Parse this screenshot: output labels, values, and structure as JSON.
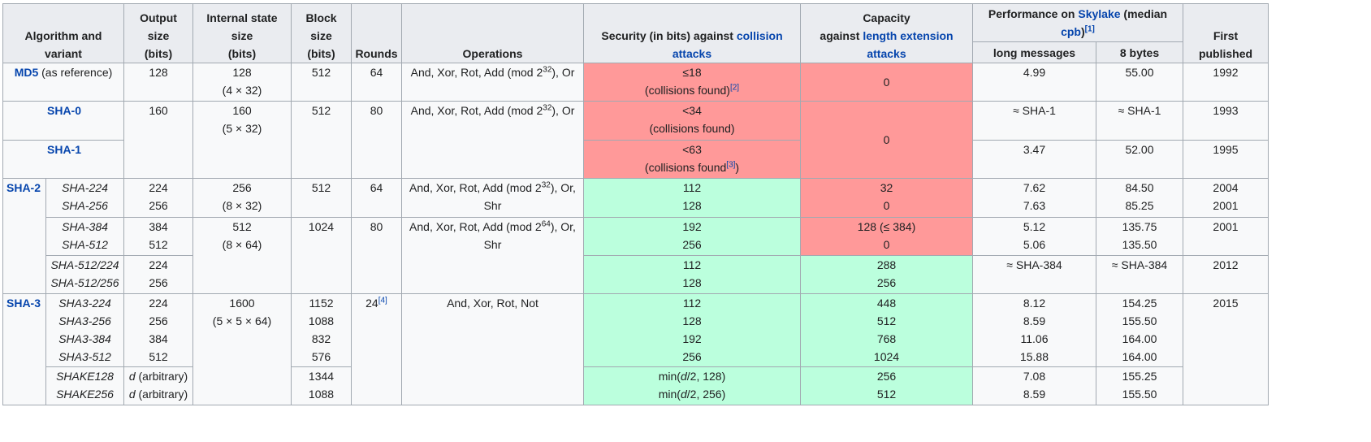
{
  "headers": {
    "algorithm": [
      "Algorithm and",
      "variant"
    ],
    "output_size": [
      "Output",
      "size",
      "(bits)"
    ],
    "internal_state": [
      "Internal state",
      "size",
      "(bits)"
    ],
    "block_size": [
      "Block",
      "size",
      "(bits)"
    ],
    "rounds": "Rounds",
    "operations": "Operations",
    "security_prefix": "Security (in bits) against ",
    "security_link": "collision attacks",
    "capacity_line1": "Capacity",
    "capacity_prefix": "against ",
    "capacity_link": "length extension attacks",
    "perf_prefix": "Performance on ",
    "perf_link": "Skylake",
    "perf_mid": " (median ",
    "perf_link2": "cpb",
    "perf_suffix": ")",
    "perf_ref": "[1]",
    "long_messages": "long messages",
    "eight_bytes": "8 bytes",
    "first_published": [
      "First",
      "published"
    ]
  },
  "rows": {
    "md5": {
      "name": "MD5",
      "name_suffix": " (as reference)",
      "output": "128",
      "state_a": "128",
      "state_b": "(4 × 32)",
      "block": "512",
      "rounds": "64",
      "ops_a": "And, Xor, Rot, Add (mod 2",
      "ops_exp": "32",
      "ops_b": "), Or",
      "security_a": "≤18",
      "security_b": "(collisions found)",
      "security_ref": "[2]",
      "capacity": "0",
      "perf_long": "4.99",
      "perf_8": "55.00",
      "year": "1992"
    },
    "sha0": {
      "name": "SHA-0",
      "output": "160",
      "state_a": "160",
      "state_b": "(5 × 32)",
      "block": "512",
      "rounds": "80",
      "ops_a": "And, Xor, Rot, Add (mod 2",
      "ops_exp": "32",
      "ops_b": "), Or",
      "security_a": "<34",
      "security_b": "(collisions found)",
      "capacity": "0",
      "perf_long": "≈ SHA-1",
      "perf_8": "≈ SHA-1",
      "year": "1993"
    },
    "sha1": {
      "name": "SHA-1",
      "security_a": "<63",
      "security_b": "(collisions found",
      "security_ref": "[3]",
      "security_close": ")",
      "perf_long": "3.47",
      "perf_8": "52.00",
      "year": "1995"
    },
    "sha2": {
      "group": "SHA-2",
      "g1": {
        "variants": [
          "SHA-224",
          "SHA-256"
        ],
        "outputs": [
          "224",
          "256"
        ],
        "state_a": "256",
        "state_b": "(8 × 32)",
        "block": "512",
        "rounds": "64",
        "ops_a": "And, Xor, Rot, Add (mod 2",
        "ops_exp": "32",
        "ops_b": "), Or,",
        "ops_c": "Shr",
        "security": [
          "112",
          "128"
        ],
        "capacity": [
          "32",
          "0"
        ],
        "perf_long": [
          "7.62",
          "7.63"
        ],
        "perf_8": [
          "84.50",
          "85.25"
        ],
        "years": [
          "2004",
          "2001"
        ]
      },
      "g2": {
        "variants": [
          "SHA-384",
          "SHA-512"
        ],
        "outputs": [
          "384",
          "512"
        ],
        "state_a": "512",
        "state_b": "(8 × 64)",
        "block": "1024",
        "rounds": "80",
        "ops_a": "And, Xor, Rot, Add (mod 2",
        "ops_exp": "64",
        "ops_b": "), Or,",
        "ops_c": "Shr",
        "security": [
          "192",
          "256"
        ],
        "capacity": [
          "128 (≤ 384)",
          "0"
        ],
        "perf_long": [
          "5.12",
          "5.06"
        ],
        "perf_8": [
          "135.75",
          "135.50"
        ],
        "year": "2001"
      },
      "g3": {
        "variants": [
          "SHA-512/224",
          "SHA-512/256"
        ],
        "outputs": [
          "224",
          "256"
        ],
        "security": [
          "112",
          "128"
        ],
        "capacity": [
          "288",
          "256"
        ],
        "perf_long": "≈ SHA-384",
        "perf_8": "≈ SHA-384",
        "year": "2012"
      }
    },
    "sha3": {
      "group": "SHA-3",
      "g1": {
        "variants": [
          "SHA3-224",
          "SHA3-256",
          "SHA3-384",
          "SHA3-512"
        ],
        "outputs": [
          "224",
          "256",
          "384",
          "512"
        ],
        "state_a": "1600",
        "state_b": "(5 × 5 × 64)",
        "blocks": [
          "1152",
          "1088",
          "832",
          "576"
        ],
        "rounds": "24",
        "rounds_ref": "[4]",
        "ops": "And, Xor, Rot, Not",
        "security": [
          "112",
          "128",
          "192",
          "256"
        ],
        "capacity": [
          "448",
          "512",
          "768",
          "1024"
        ],
        "perf_long": [
          "8.12",
          "8.59",
          "11.06",
          "15.88"
        ],
        "perf_8": [
          "154.25",
          "155.50",
          "164.00",
          "164.00"
        ],
        "year": "2015"
      },
      "g2": {
        "variants": [
          "SHAKE128",
          "SHAKE256"
        ],
        "output_d": "d",
        "output_suffix": " (arbitrary)",
        "blocks": [
          "1344",
          "1088"
        ],
        "security_prefix": "min(",
        "security_d": "d",
        "security_suffix": [
          "/2, 128)",
          "/2, 256)"
        ],
        "capacity": [
          "256",
          "512"
        ],
        "perf_long": [
          "7.08",
          "8.59"
        ],
        "perf_8": [
          "155.25",
          "155.50"
        ]
      }
    }
  },
  "colors": {
    "red": "#ff9999",
    "green": "#bbffdd",
    "header": "#eaecf0",
    "link": "#0645ad"
  }
}
